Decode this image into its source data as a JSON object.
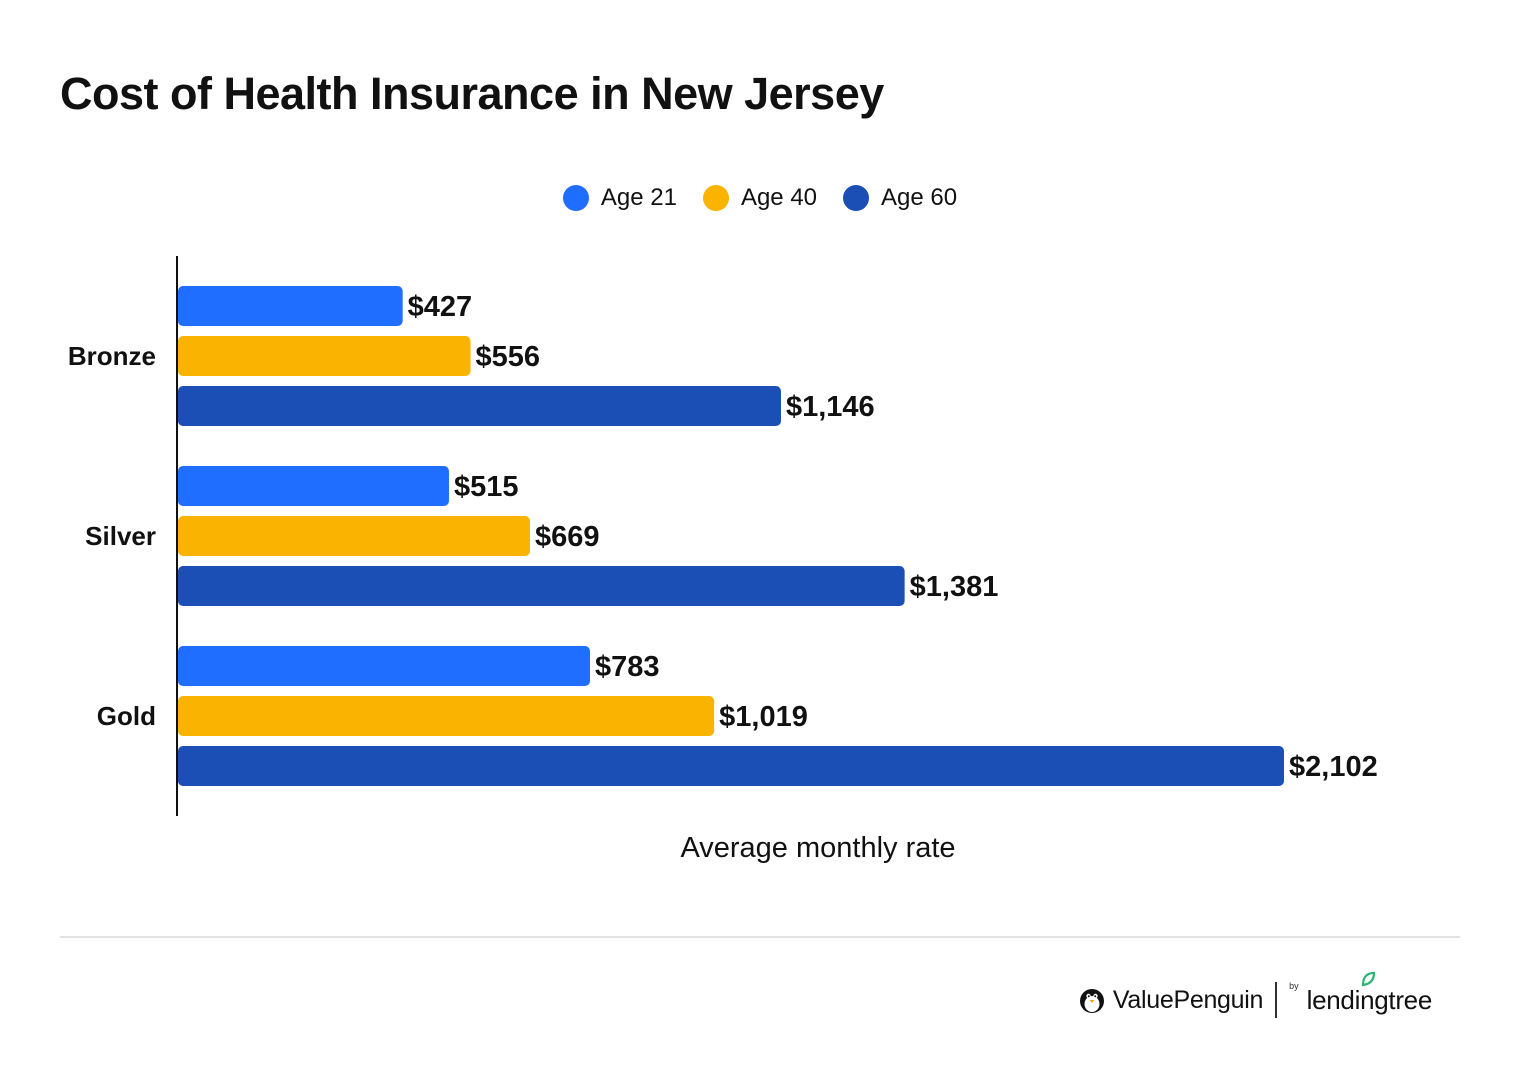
{
  "chart_data": {
    "type": "bar",
    "orientation": "horizontal",
    "title": "Cost of Health Insurance in New Jersey",
    "xlabel": "Average monthly rate",
    "ylabel": "",
    "categories": [
      "Bronze",
      "Silver",
      "Gold"
    ],
    "series": [
      {
        "name": "Age 21",
        "color": "#1f6eff",
        "values": [
          427,
          515,
          783
        ],
        "labels": [
          "$427",
          "$515",
          "$783"
        ]
      },
      {
        "name": "Age 40",
        "color": "#f9b300",
        "values": [
          556,
          669,
          1019
        ],
        "labels": [
          "$556",
          "$669",
          "$1,019"
        ]
      },
      {
        "name": "Age 60",
        "color": "#1b4fb5",
        "values": [
          1146,
          1381,
          2102
        ],
        "labels": [
          "$1,146",
          "$1,381",
          "$2,102"
        ]
      }
    ],
    "xlim": [
      0,
      2102
    ],
    "grid": false,
    "legend_position": "top-center"
  },
  "branding": {
    "primary": "ValuePenguin",
    "by": "by",
    "secondary": "lendingtree",
    "icons": [
      "penguin-icon",
      "leaf-icon"
    ]
  }
}
